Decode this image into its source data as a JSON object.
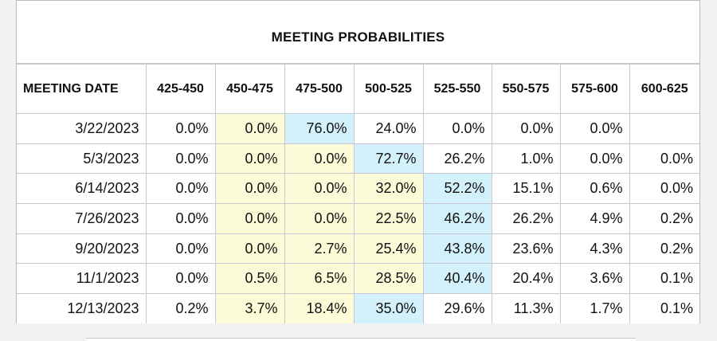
{
  "table": {
    "title": "MEETING PROBABILITIES",
    "columns": [
      "MEETING DATE",
      "425-450",
      "450-475",
      "475-500",
      "500-525",
      "525-550",
      "550-575",
      "575-600",
      "600-625"
    ],
    "rows": [
      {
        "date": "3/22/2023",
        "cells": [
          {
            "value": "0.0%",
            "tone": "white"
          },
          {
            "value": "0.0%",
            "tone": "yellow"
          },
          {
            "value": "76.0%",
            "tone": "blue"
          },
          {
            "value": "24.0%",
            "tone": "white"
          },
          {
            "value": "0.0%",
            "tone": "white"
          },
          {
            "value": "0.0%",
            "tone": "white"
          },
          {
            "value": "0.0%",
            "tone": "white"
          },
          {
            "value": "",
            "tone": "white"
          }
        ]
      },
      {
        "date": "5/3/2023",
        "cells": [
          {
            "value": "0.0%",
            "tone": "white"
          },
          {
            "value": "0.0%",
            "tone": "yellow"
          },
          {
            "value": "0.0%",
            "tone": "yellow"
          },
          {
            "value": "72.7%",
            "tone": "blue"
          },
          {
            "value": "26.2%",
            "tone": "white"
          },
          {
            "value": "1.0%",
            "tone": "white"
          },
          {
            "value": "0.0%",
            "tone": "white"
          },
          {
            "value": "0.0%",
            "tone": "white"
          }
        ]
      },
      {
        "date": "6/14/2023",
        "cells": [
          {
            "value": "0.0%",
            "tone": "white"
          },
          {
            "value": "0.0%",
            "tone": "yellow"
          },
          {
            "value": "0.0%",
            "tone": "yellow"
          },
          {
            "value": "32.0%",
            "tone": "yellow"
          },
          {
            "value": "52.2%",
            "tone": "blue"
          },
          {
            "value": "15.1%",
            "tone": "white"
          },
          {
            "value": "0.6%",
            "tone": "white"
          },
          {
            "value": "0.0%",
            "tone": "white"
          }
        ]
      },
      {
        "date": "7/26/2023",
        "cells": [
          {
            "value": "0.0%",
            "tone": "white"
          },
          {
            "value": "0.0%",
            "tone": "yellow"
          },
          {
            "value": "0.0%",
            "tone": "yellow"
          },
          {
            "value": "22.5%",
            "tone": "yellow"
          },
          {
            "value": "46.2%",
            "tone": "blue"
          },
          {
            "value": "26.2%",
            "tone": "white"
          },
          {
            "value": "4.9%",
            "tone": "white"
          },
          {
            "value": "0.2%",
            "tone": "white"
          }
        ]
      },
      {
        "date": "9/20/2023",
        "cells": [
          {
            "value": "0.0%",
            "tone": "white"
          },
          {
            "value": "0.0%",
            "tone": "yellow"
          },
          {
            "value": "2.7%",
            "tone": "yellow"
          },
          {
            "value": "25.4%",
            "tone": "yellow"
          },
          {
            "value": "43.8%",
            "tone": "blue"
          },
          {
            "value": "23.6%",
            "tone": "white"
          },
          {
            "value": "4.3%",
            "tone": "white"
          },
          {
            "value": "0.2%",
            "tone": "white"
          }
        ]
      },
      {
        "date": "11/1/2023",
        "cells": [
          {
            "value": "0.0%",
            "tone": "white"
          },
          {
            "value": "0.5%",
            "tone": "yellow"
          },
          {
            "value": "6.5%",
            "tone": "yellow"
          },
          {
            "value": "28.5%",
            "tone": "yellow"
          },
          {
            "value": "40.4%",
            "tone": "blue"
          },
          {
            "value": "20.4%",
            "tone": "white"
          },
          {
            "value": "3.6%",
            "tone": "white"
          },
          {
            "value": "0.1%",
            "tone": "white"
          }
        ]
      },
      {
        "date": "12/13/2023",
        "cells": [
          {
            "value": "0.2%",
            "tone": "white"
          },
          {
            "value": "3.7%",
            "tone": "yellow"
          },
          {
            "value": "18.4%",
            "tone": "yellow"
          },
          {
            "value": "35.0%",
            "tone": "blue"
          },
          {
            "value": "29.6%",
            "tone": "white"
          },
          {
            "value": "11.3%",
            "tone": "white"
          },
          {
            "value": "1.7%",
            "tone": "white"
          },
          {
            "value": "0.1%",
            "tone": "white"
          }
        ]
      }
    ]
  },
  "colors": {
    "yellow": "#fcfbd8",
    "blue": "#d3f1fb",
    "border": "#c7c7d1"
  }
}
